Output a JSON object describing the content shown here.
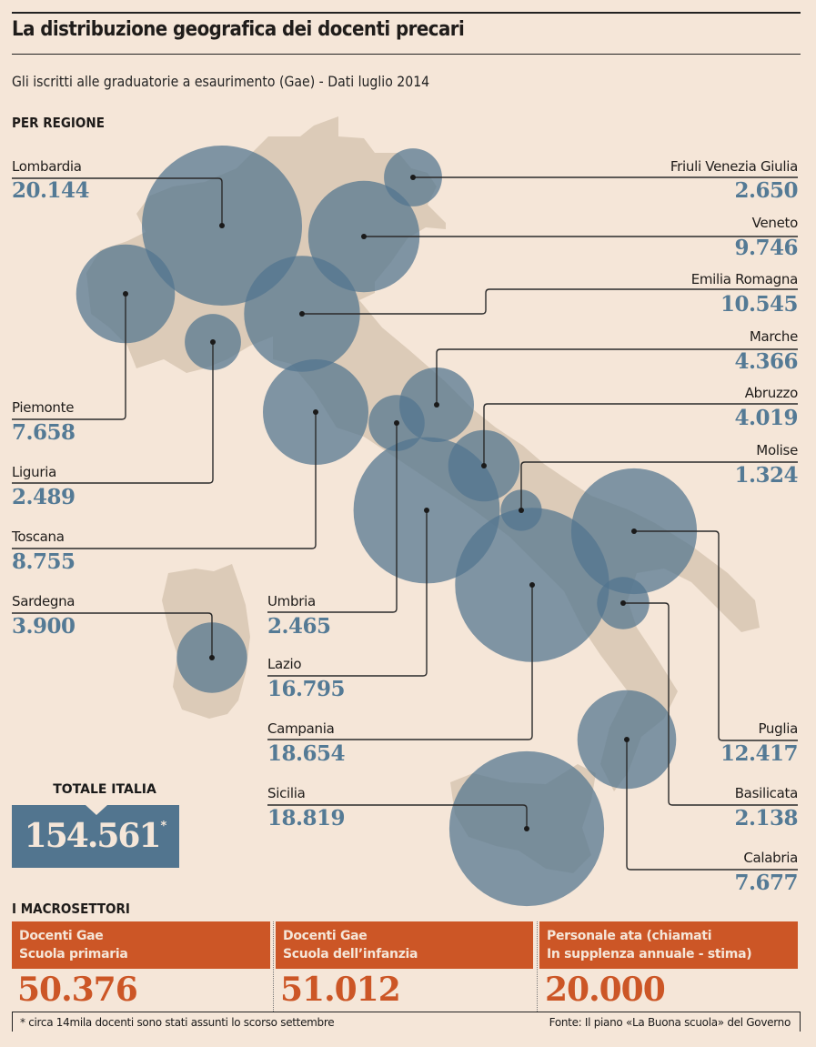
{
  "header": {
    "title": "La distribuzione geografica dei docenti precari",
    "subtitle": "Gli iscritti alle graduatorie a esaurimento (Gae) - Dati luglio 2014",
    "section_regions": "PER REGIONE"
  },
  "colors": {
    "background": "#f5e6d8",
    "land": "#dccbb8",
    "bubble": "#52758f",
    "value_text": "#547a95",
    "accent": "#cc5626"
  },
  "chart_data": {
    "type": "bubble-map",
    "title": "La distribuzione geografica dei docenti precari",
    "subtitle": "Gli iscritti alle graduatorie a esaurimento (Gae) - Dati luglio 2014",
    "value_unit": "docenti iscritti Gae",
    "regions": [
      {
        "name": "Lombardia",
        "label": "20.144",
        "value": 20144
      },
      {
        "name": "Friuli Venezia Giulia",
        "label": "2.650",
        "value": 2650
      },
      {
        "name": "Veneto",
        "label": "9.746",
        "value": 9746
      },
      {
        "name": "Emilia Romagna",
        "label": "10.545",
        "value": 10545
      },
      {
        "name": "Piemonte",
        "label": "7.658",
        "value": 7658
      },
      {
        "name": "Liguria",
        "label": "2.489",
        "value": 2489
      },
      {
        "name": "Toscana",
        "label": "8.755",
        "value": 8755
      },
      {
        "name": "Marche",
        "label": "4.366",
        "value": 4366
      },
      {
        "name": "Umbria",
        "label": "2.465",
        "value": 2465
      },
      {
        "name": "Abruzzo",
        "label": "4.019",
        "value": 4019
      },
      {
        "name": "Molise",
        "label": "1.324",
        "value": 1324
      },
      {
        "name": "Lazio",
        "label": "16.795",
        "value": 16795
      },
      {
        "name": "Campania",
        "label": "18.654",
        "value": 18654
      },
      {
        "name": "Puglia",
        "label": "12.417",
        "value": 12417
      },
      {
        "name": "Basilicata",
        "label": "2.138",
        "value": 2138
      },
      {
        "name": "Calabria",
        "label": "7.677",
        "value": 7677
      },
      {
        "name": "Sicilia",
        "label": "18.819",
        "value": 18819
      },
      {
        "name": "Sardegna",
        "label": "3.900",
        "value": 3900
      }
    ]
  },
  "total": {
    "label": "TOTALE ITALIA",
    "value": "154.561",
    "footnote_marker": "*"
  },
  "macro": {
    "section_label": "I MACROSETTORI",
    "items": [
      {
        "line1": "Docenti Gae",
        "line2": "Scuola primaria",
        "value": "50.376"
      },
      {
        "line1": "Docenti Gae",
        "line2": "Scuola dell’infanzia",
        "value": "51.012"
      },
      {
        "line1": "Personale ata (chiamati",
        "line2": "In supplenza annuale - stima)",
        "value": "20.000"
      }
    ]
  },
  "footer": {
    "note": "* circa 14mila docenti sono stati assunti lo scorso settembre",
    "source": "Fonte: Il piano «La Buona scuola» del Governo"
  }
}
